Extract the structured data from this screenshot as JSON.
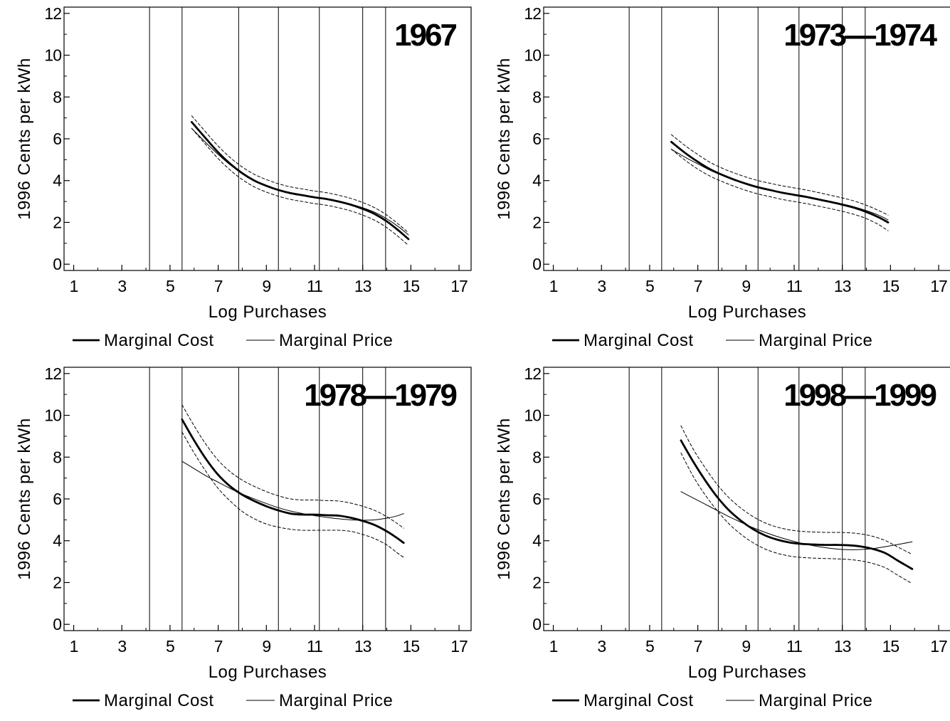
{
  "figure": {
    "legend": {
      "cost_label": "Marginal Cost",
      "price_label": "Marginal Price"
    }
  },
  "chart_data": [
    {
      "type": "line",
      "title": "1967",
      "xlabel": "Log Purchases",
      "ylabel": "1996 Cents per kWh",
      "xlim": [
        0.6,
        17.5
      ],
      "ylim": [
        -0.3,
        12.3
      ],
      "xticks": [
        1,
        3,
        5,
        7,
        9,
        11,
        13,
        15,
        17
      ],
      "yticks": [
        0,
        2,
        4,
        6,
        8,
        10,
        12
      ],
      "vlines": [
        4.15,
        5.5,
        7.85,
        9.5,
        11.2,
        13.0,
        13.95
      ],
      "grid": false,
      "legend_position": "bottom",
      "series": [
        {
          "name": "Marginal Cost",
          "style": "solid-thick",
          "x": [
            5.9,
            6.5,
            7.0,
            7.5,
            8.0,
            8.5,
            9.0,
            9.5,
            10.0,
            10.5,
            11.0,
            11.5,
            12.0,
            12.5,
            13.0,
            13.5,
            14.0,
            14.5,
            14.9
          ],
          "y": [
            6.8,
            6.0,
            5.35,
            4.8,
            4.35,
            4.0,
            3.75,
            3.55,
            3.4,
            3.3,
            3.2,
            3.12,
            3.0,
            2.85,
            2.65,
            2.4,
            2.05,
            1.6,
            1.2
          ]
        },
        {
          "name": "Marginal Price",
          "style": "solid-thin",
          "x": [
            5.9,
            6.5,
            7.0,
            7.5,
            8.0,
            8.5,
            9.0,
            9.5,
            10.0,
            10.5,
            11.0,
            11.5,
            12.0,
            12.5,
            13.0,
            13.5,
            14.0,
            14.5,
            14.9
          ],
          "y": [
            6.5,
            5.8,
            5.25,
            4.75,
            4.35,
            4.02,
            3.77,
            3.57,
            3.43,
            3.32,
            3.22,
            3.12,
            3.0,
            2.87,
            2.7,
            2.48,
            2.17,
            1.78,
            1.4
          ]
        },
        {
          "name": "",
          "style": "dashed",
          "x": [
            5.9,
            6.5,
            7.0,
            7.5,
            8.0,
            8.5,
            9.0,
            9.5,
            10.0,
            10.5,
            11.0,
            11.5,
            12.0,
            12.5,
            13.0,
            13.5,
            14.0,
            14.5,
            14.9
          ],
          "y": [
            7.1,
            6.3,
            5.65,
            5.1,
            4.65,
            4.3,
            4.05,
            3.85,
            3.7,
            3.6,
            3.5,
            3.42,
            3.3,
            3.15,
            2.95,
            2.7,
            2.35,
            1.9,
            1.5
          ]
        },
        {
          "name": "",
          "style": "dashed",
          "x": [
            5.9,
            6.5,
            7.0,
            7.5,
            8.0,
            8.5,
            9.0,
            9.5,
            10.0,
            10.5,
            11.0,
            11.5,
            12.0,
            12.5,
            13.0,
            13.5,
            14.0,
            14.5,
            14.9
          ],
          "y": [
            6.5,
            5.7,
            5.05,
            4.5,
            4.05,
            3.7,
            3.45,
            3.25,
            3.1,
            3.0,
            2.9,
            2.82,
            2.7,
            2.55,
            2.35,
            2.1,
            1.75,
            1.3,
            0.9
          ]
        }
      ]
    },
    {
      "type": "line",
      "title": "1973—1974",
      "xlabel": "Log Purchases",
      "ylabel": "1996 Cents per kWh",
      "xlim": [
        0.6,
        17.5
      ],
      "ylim": [
        -0.3,
        12.3
      ],
      "xticks": [
        1,
        3,
        5,
        7,
        9,
        11,
        13,
        15,
        17
      ],
      "yticks": [
        0,
        2,
        4,
        6,
        8,
        10,
        12
      ],
      "vlines": [
        4.15,
        5.5,
        7.85,
        9.5,
        11.2,
        13.0,
        13.95
      ],
      "grid": false,
      "legend_position": "bottom",
      "series": [
        {
          "name": "Marginal Cost",
          "style": "solid-thick",
          "x": [
            5.9,
            6.5,
            7.0,
            7.5,
            8.0,
            8.5,
            9.0,
            9.5,
            10.0,
            10.5,
            11.0,
            11.5,
            12.0,
            12.5,
            13.0,
            13.5,
            14.0,
            14.5,
            14.9
          ],
          "y": [
            5.85,
            5.3,
            4.9,
            4.55,
            4.28,
            4.05,
            3.85,
            3.68,
            3.55,
            3.42,
            3.32,
            3.22,
            3.1,
            2.98,
            2.85,
            2.7,
            2.5,
            2.25,
            2.0
          ]
        },
        {
          "name": "Marginal Price",
          "style": "solid-thin",
          "x": [
            5.9,
            6.5,
            7.0,
            7.5,
            8.0,
            8.5,
            9.0,
            9.5,
            10.0,
            10.5,
            11.0,
            11.5,
            12.0,
            12.5,
            13.0,
            13.5,
            14.0,
            14.5,
            14.9
          ],
          "y": [
            5.5,
            5.1,
            4.8,
            4.5,
            4.25,
            4.03,
            3.84,
            3.68,
            3.55,
            3.43,
            3.33,
            3.23,
            3.12,
            3.0,
            2.88,
            2.74,
            2.56,
            2.35,
            2.12
          ]
        },
        {
          "name": "",
          "style": "dashed",
          "x": [
            5.9,
            6.5,
            7.0,
            7.5,
            8.0,
            8.5,
            9.0,
            9.5,
            10.0,
            10.5,
            11.0,
            11.5,
            12.0,
            12.5,
            13.0,
            13.5,
            14.0,
            14.5,
            14.9
          ],
          "y": [
            6.2,
            5.65,
            5.25,
            4.88,
            4.6,
            4.37,
            4.17,
            4.0,
            3.87,
            3.75,
            3.65,
            3.55,
            3.43,
            3.3,
            3.17,
            3.02,
            2.82,
            2.57,
            2.35
          ]
        },
        {
          "name": "",
          "style": "dashed",
          "x": [
            5.9,
            6.5,
            7.0,
            7.5,
            8.0,
            8.5,
            9.0,
            9.5,
            10.0,
            10.5,
            11.0,
            11.5,
            12.0,
            12.5,
            13.0,
            13.5,
            14.0,
            14.5,
            14.9
          ],
          "y": [
            5.5,
            4.95,
            4.55,
            4.22,
            3.96,
            3.73,
            3.53,
            3.36,
            3.23,
            3.1,
            3.0,
            2.9,
            2.78,
            2.66,
            2.53,
            2.38,
            2.18,
            1.9,
            1.6
          ]
        }
      ]
    },
    {
      "type": "line",
      "title": "1978—1979",
      "xlabel": "Log Purchases",
      "ylabel": "1996 Cents per kWh",
      "xlim": [
        0.6,
        17.5
      ],
      "ylim": [
        -0.3,
        12.3
      ],
      "xticks": [
        1,
        3,
        5,
        7,
        9,
        11,
        13,
        15,
        17
      ],
      "yticks": [
        0,
        2,
        4,
        6,
        8,
        10,
        12
      ],
      "vlines": [
        4.15,
        5.5,
        7.85,
        9.5,
        11.2,
        13.0,
        13.95
      ],
      "grid": false,
      "legend_position": "bottom",
      "series": [
        {
          "name": "Marginal Cost",
          "style": "solid-thick",
          "x": [
            5.5,
            6.0,
            6.5,
            7.0,
            7.5,
            8.0,
            8.5,
            9.0,
            9.5,
            10.0,
            10.5,
            11.0,
            11.5,
            12.0,
            12.5,
            13.0,
            13.5,
            14.0,
            14.4,
            14.7
          ],
          "y": [
            9.8,
            8.8,
            7.9,
            7.15,
            6.6,
            6.2,
            5.9,
            5.65,
            5.45,
            5.3,
            5.25,
            5.25,
            5.22,
            5.2,
            5.1,
            4.95,
            4.75,
            4.45,
            4.15,
            3.9
          ]
        },
        {
          "name": "Marginal Price",
          "style": "solid-thin",
          "x": [
            5.5,
            6.0,
            6.5,
            7.0,
            7.5,
            8.0,
            8.5,
            9.0,
            9.5,
            10.0,
            10.5,
            11.0,
            11.5,
            12.0,
            12.5,
            13.0,
            13.5,
            14.0,
            14.4,
            14.7
          ],
          "y": [
            7.8,
            7.45,
            7.1,
            6.8,
            6.5,
            6.23,
            6.0,
            5.78,
            5.58,
            5.42,
            5.3,
            5.2,
            5.12,
            5.05,
            5.0,
            4.98,
            5.0,
            5.08,
            5.18,
            5.3
          ]
        },
        {
          "name": "",
          "style": "dashed",
          "x": [
            5.5,
            6.0,
            6.5,
            7.0,
            7.5,
            8.0,
            8.5,
            9.0,
            9.5,
            10.0,
            10.5,
            11.0,
            11.5,
            12.0,
            12.5,
            13.0,
            13.5,
            14.0,
            14.4,
            14.7
          ],
          "y": [
            10.5,
            9.5,
            8.6,
            7.85,
            7.3,
            6.9,
            6.6,
            6.35,
            6.15,
            6.0,
            5.95,
            5.95,
            5.92,
            5.9,
            5.8,
            5.65,
            5.45,
            5.15,
            4.85,
            4.6
          ]
        },
        {
          "name": "",
          "style": "dashed",
          "x": [
            5.5,
            6.0,
            6.5,
            7.0,
            7.5,
            8.0,
            8.5,
            9.0,
            9.5,
            10.0,
            10.5,
            11.0,
            11.5,
            12.0,
            12.5,
            13.0,
            13.5,
            14.0,
            14.4,
            14.7
          ],
          "y": [
            9.2,
            8.2,
            7.3,
            6.5,
            5.9,
            5.4,
            5.05,
            4.8,
            4.65,
            4.55,
            4.5,
            4.5,
            4.5,
            4.5,
            4.45,
            4.3,
            4.1,
            3.8,
            3.45,
            3.2
          ]
        }
      ]
    },
    {
      "type": "line",
      "title": "1998—1999",
      "xlabel": "Log Purchases",
      "ylabel": "1996 Cents per kWh",
      "xlim": [
        0.6,
        17.5
      ],
      "ylim": [
        -0.3,
        12.3
      ],
      "xticks": [
        1,
        3,
        5,
        7,
        9,
        11,
        13,
        15,
        17
      ],
      "yticks": [
        0,
        2,
        4,
        6,
        8,
        10,
        12
      ],
      "vlines": [
        4.15,
        5.5,
        7.85,
        9.5,
        11.2,
        13.0,
        13.95
      ],
      "grid": false,
      "legend_position": "bottom",
      "series": [
        {
          "name": "Marginal Cost",
          "style": "solid-thick",
          "x": [
            6.3,
            6.8,
            7.3,
            7.8,
            8.3,
            8.8,
            9.3,
            9.8,
            10.3,
            10.8,
            11.3,
            11.8,
            12.3,
            12.8,
            13.3,
            13.8,
            14.3,
            14.8,
            15.3,
            15.9
          ],
          "y": [
            8.8,
            7.8,
            6.9,
            6.1,
            5.45,
            4.95,
            4.55,
            4.25,
            4.05,
            3.92,
            3.85,
            3.82,
            3.8,
            3.8,
            3.78,
            3.72,
            3.6,
            3.4,
            3.05,
            2.65
          ]
        },
        {
          "name": "Marginal Price",
          "style": "solid-thin",
          "x": [
            6.3,
            6.8,
            7.3,
            7.8,
            8.3,
            8.8,
            9.3,
            9.8,
            10.3,
            10.8,
            11.3,
            11.8,
            12.3,
            12.8,
            13.3,
            13.8,
            14.3,
            14.8,
            15.3,
            15.9
          ],
          "y": [
            6.35,
            6.05,
            5.75,
            5.45,
            5.15,
            4.88,
            4.62,
            4.4,
            4.2,
            4.03,
            3.88,
            3.76,
            3.67,
            3.6,
            3.57,
            3.58,
            3.63,
            3.72,
            3.82,
            3.95
          ]
        },
        {
          "name": "",
          "style": "dashed",
          "x": [
            6.3,
            6.8,
            7.3,
            7.8,
            8.3,
            8.8,
            9.3,
            9.8,
            10.3,
            10.8,
            11.3,
            11.8,
            12.3,
            12.8,
            13.3,
            13.8,
            14.3,
            14.8,
            15.3,
            15.9
          ],
          "y": [
            9.5,
            8.4,
            7.5,
            6.7,
            6.05,
            5.55,
            5.15,
            4.85,
            4.65,
            4.52,
            4.45,
            4.42,
            4.4,
            4.4,
            4.38,
            4.32,
            4.2,
            4.0,
            3.7,
            3.35
          ]
        },
        {
          "name": "",
          "style": "dashed",
          "x": [
            6.3,
            6.8,
            7.3,
            7.8,
            8.3,
            8.8,
            9.3,
            9.8,
            10.3,
            10.8,
            11.3,
            11.8,
            12.3,
            12.8,
            13.3,
            13.8,
            14.3,
            14.8,
            15.3,
            15.9
          ],
          "y": [
            8.2,
            7.1,
            6.2,
            5.45,
            4.8,
            4.3,
            3.9,
            3.6,
            3.4,
            3.27,
            3.2,
            3.17,
            3.15,
            3.13,
            3.1,
            3.03,
            2.9,
            2.7,
            2.35,
            1.95
          ]
        }
      ]
    }
  ]
}
